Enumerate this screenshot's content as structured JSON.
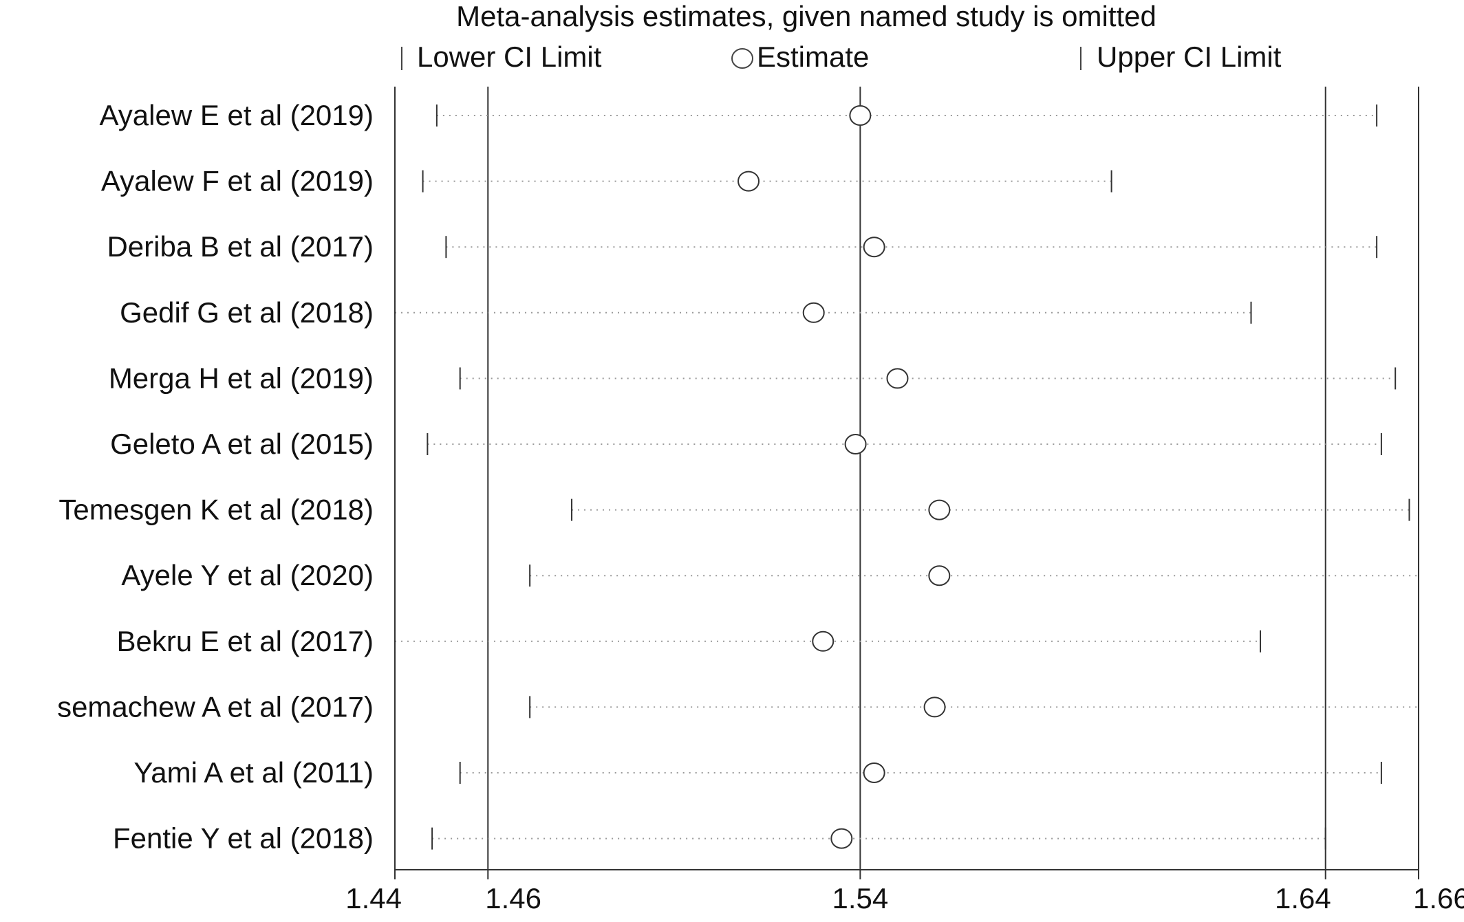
{
  "chart_data": {
    "type": "scatter",
    "title": "Meta-analysis estimates, given named study is omitted",
    "legend": {
      "placement": "top",
      "entries": [
        {
          "key": "lower",
          "label": "Lower CI Limit",
          "symbol": "tick"
        },
        {
          "key": "estimate",
          "label": "Estimate",
          "symbol": "circle"
        },
        {
          "key": "upper",
          "label": "Upper CI Limit",
          "symbol": "tick"
        }
      ]
    },
    "xlabel": "",
    "ylabel": "",
    "xlim": [
      1.44,
      1.66
    ],
    "x_ticks": [
      1.44,
      1.46,
      1.54,
      1.64,
      1.66
    ],
    "x_tick_labels": [
      "1.44",
      "1.46",
      "1.54",
      "1.64",
      "1.66"
    ],
    "reference_lines": [
      1.44,
      1.46,
      1.54,
      1.64,
      1.66
    ],
    "studies": [
      {
        "label": "Ayalew E et al (2019)",
        "lower": 1.449,
        "estimate": 1.54,
        "upper": 1.651
      },
      {
        "label": "Ayalew F et al (2019)",
        "lower": 1.446,
        "estimate": 1.516,
        "upper": 1.594
      },
      {
        "label": "Deriba B et al (2017)",
        "lower": 1.451,
        "estimate": 1.543,
        "upper": 1.651
      },
      {
        "label": "Gedif G et al (2018)",
        "lower": 1.44,
        "estimate": 1.53,
        "upper": 1.624
      },
      {
        "label": "Merga H et al (2019)",
        "lower": 1.454,
        "estimate": 1.548,
        "upper": 1.655
      },
      {
        "label": "Geleto A et al (2015)",
        "lower": 1.447,
        "estimate": 1.539,
        "upper": 1.652
      },
      {
        "label": "Temesgen K et al (2018)",
        "lower": 1.478,
        "estimate": 1.557,
        "upper": 1.658
      },
      {
        "label": "Ayele Y et al (2020)",
        "lower": 1.469,
        "estimate": 1.557,
        "upper": 1.66
      },
      {
        "label": "Bekru E et al (2017)",
        "lower": 1.44,
        "estimate": 1.532,
        "upper": 1.626
      },
      {
        "label": "semachew A et al (2017)",
        "lower": 1.469,
        "estimate": 1.556,
        "upper": 1.66
      },
      {
        "label": "Yami A et al (2011)",
        "lower": 1.454,
        "estimate": 1.543,
        "upper": 1.652
      },
      {
        "label": "Fentie Y et al (2018)",
        "lower": 1.448,
        "estimate": 1.536,
        "upper": 1.64
      }
    ],
    "grid": false
  }
}
